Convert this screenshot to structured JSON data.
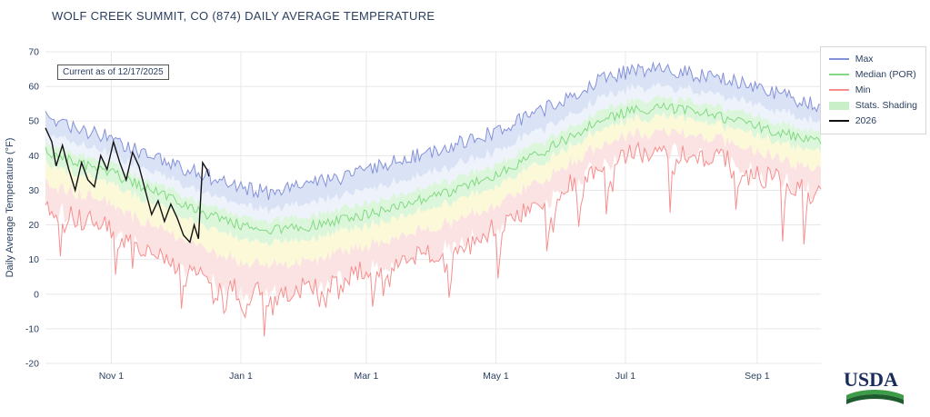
{
  "page": {
    "title": "WOLF CREEK SUMMIT, CO (874) DAILY AVERAGE TEMPERATURE"
  },
  "annotation": {
    "text": "Current as of 12/17/2025"
  },
  "logo": {
    "text": "USDA"
  },
  "legend": {
    "position": "top-right",
    "items": [
      {
        "label": "Max",
        "type": "line",
        "color": "#8591d8"
      },
      {
        "label": "Median (POR)",
        "type": "line",
        "color": "#82d982"
      },
      {
        "label": "Min",
        "type": "line",
        "color": "#f58f8f"
      },
      {
        "label": "Stats. Shading",
        "type": "patch",
        "color": "#c9efc9"
      },
      {
        "label": "2026",
        "type": "line",
        "color": "#111111",
        "width": 2
      }
    ]
  },
  "colors": {
    "text": "#2a3f5f",
    "grid": "#e8e8e8",
    "background": "#ffffff",
    "usda_blue": "#1a2d5a",
    "usda_green_light": "#3d9c47",
    "usda_green_dark": "#1e5b2e"
  },
  "chart_data": {
    "type": "line",
    "title": "WOLF CREEK SUMMIT, CO (874) DAILY AVERAGE TEMPERATURE",
    "xlabel": "",
    "ylabel": "Daily Average Temperature (°F)",
    "x_range": [
      0,
      365
    ],
    "y_range": [
      -20,
      70
    ],
    "grid": true,
    "legend_position": "top-right",
    "x_ticks": [
      {
        "day": 31,
        "label": "Nov 1"
      },
      {
        "day": 92,
        "label": "Jan 1"
      },
      {
        "day": 151,
        "label": "Mar 1"
      },
      {
        "day": 212,
        "label": "May 1"
      },
      {
        "day": 273,
        "label": "Jul 1"
      },
      {
        "day": 335,
        "label": "Sep 1"
      }
    ],
    "y_ticks": [
      70,
      60,
      50,
      40,
      30,
      20,
      10,
      0,
      -10,
      -20
    ],
    "series": {
      "max": {
        "name": "Max",
        "color": "#8591d8",
        "points": [
          [
            0,
            52
          ],
          [
            15,
            48
          ],
          [
            31,
            45
          ],
          [
            46,
            41
          ],
          [
            61,
            37
          ],
          [
            76,
            34
          ],
          [
            92,
            31
          ],
          [
            107,
            29
          ],
          [
            123,
            31.5
          ],
          [
            137,
            33.5
          ],
          [
            151,
            36
          ],
          [
            167,
            38.5
          ],
          [
            182,
            41
          ],
          [
            197,
            44
          ],
          [
            212,
            47
          ],
          [
            227,
            51
          ],
          [
            243,
            56
          ],
          [
            258,
            61
          ],
          [
            273,
            64
          ],
          [
            288,
            65.5
          ],
          [
            304,
            63.5
          ],
          [
            319,
            62
          ],
          [
            335,
            60
          ],
          [
            350,
            57
          ],
          [
            365,
            54
          ]
        ]
      },
      "median": {
        "name": "Median (POR)",
        "color": "#82d982",
        "points": [
          [
            0,
            41
          ],
          [
            15,
            38
          ],
          [
            31,
            35
          ],
          [
            46,
            31
          ],
          [
            61,
            27
          ],
          [
            76,
            23
          ],
          [
            92,
            20
          ],
          [
            107,
            18.5
          ],
          [
            123,
            19.5
          ],
          [
            137,
            21
          ],
          [
            151,
            23
          ],
          [
            167,
            25.5
          ],
          [
            182,
            28
          ],
          [
            197,
            31
          ],
          [
            212,
            34.5
          ],
          [
            227,
            39
          ],
          [
            243,
            44
          ],
          [
            258,
            49
          ],
          [
            273,
            52.5
          ],
          [
            288,
            54
          ],
          [
            304,
            53
          ],
          [
            319,
            51
          ],
          [
            335,
            48.5
          ],
          [
            350,
            46
          ],
          [
            365,
            44
          ]
        ]
      },
      "min": {
        "name": "Min",
        "color": "#f58f8f",
        "points": [
          [
            0,
            25
          ],
          [
            15,
            22
          ],
          [
            31,
            19
          ],
          [
            46,
            13
          ],
          [
            61,
            8
          ],
          [
            76,
            4
          ],
          [
            92,
            1
          ],
          [
            107,
            0
          ],
          [
            123,
            2
          ],
          [
            137,
            4
          ],
          [
            151,
            7
          ],
          [
            167,
            9
          ],
          [
            182,
            12
          ],
          [
            197,
            15
          ],
          [
            212,
            19
          ],
          [
            227,
            24
          ],
          [
            243,
            30
          ],
          [
            258,
            36
          ],
          [
            273,
            40
          ],
          [
            288,
            42
          ],
          [
            304,
            41
          ],
          [
            319,
            39
          ],
          [
            335,
            36
          ],
          [
            350,
            32
          ],
          [
            365,
            28
          ]
        ]
      },
      "y2026": {
        "name": "2026",
        "color": "#111111",
        "points": [
          [
            0,
            48
          ],
          [
            3,
            44
          ],
          [
            5,
            37
          ],
          [
            8,
            43
          ],
          [
            11,
            36
          ],
          [
            14,
            30
          ],
          [
            17,
            38
          ],
          [
            20,
            33
          ],
          [
            23,
            31
          ],
          [
            26,
            40
          ],
          [
            29,
            36
          ],
          [
            32,
            44
          ],
          [
            35,
            38
          ],
          [
            38,
            33
          ],
          [
            41,
            41
          ],
          [
            44,
            37
          ],
          [
            47,
            30
          ],
          [
            50,
            23
          ],
          [
            53,
            27
          ],
          [
            56,
            21
          ],
          [
            59,
            26
          ],
          [
            62,
            22
          ],
          [
            65,
            17
          ],
          [
            68,
            15
          ],
          [
            70,
            20
          ],
          [
            72,
            16
          ],
          [
            74,
            38
          ],
          [
            76,
            36
          ],
          [
            77,
            34
          ]
        ]
      }
    },
    "bands": {
      "colors": {
        "pink": "#fbe3e3",
        "yellow": "#fcf9d8",
        "green": "#dcf6dc",
        "pale": "#eef2fb",
        "blue": "#dae3f6"
      },
      "fractions": {
        "A": 0.45,
        "B": 0.2,
        "C": 0.25,
        "D": 0.55
      }
    },
    "noise": {
      "seed": 1217,
      "max": 2.2,
      "median": 1.5,
      "min": 3.2,
      "spike_prob": 0.14,
      "spike_amp": 16
    }
  }
}
